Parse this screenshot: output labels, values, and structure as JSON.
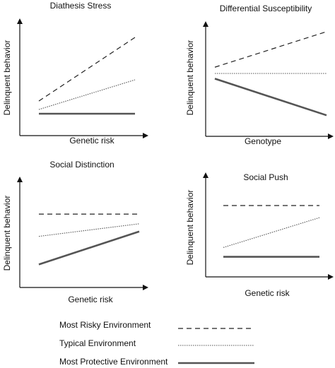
{
  "panels": [
    {
      "title": "Diathesis Stress",
      "xlabel": "Genetic risk",
      "ylabel": "Delinquent behavior",
      "lines": [
        {
          "style": "risky",
          "y_start": 0.3,
          "y_end": 0.9
        },
        {
          "style": "typical",
          "y_start": 0.22,
          "y_end": 0.5
        },
        {
          "style": "protective",
          "y_start": 0.18,
          "y_end": 0.18
        }
      ]
    },
    {
      "title": "Differential Susceptibility",
      "xlabel": "Genotype",
      "ylabel": "Delinquent behavior",
      "lines": [
        {
          "style": "risky",
          "y_start": 0.56,
          "y_end": 0.9
        },
        {
          "style": "typical",
          "y_start": 0.5,
          "y_end": 0.5
        },
        {
          "style": "protective",
          "y_start": 0.45,
          "y_end": 0.1
        }
      ]
    },
    {
      "title": "Social Distinction",
      "xlabel": "Genetic risk",
      "ylabel": "Delinquent behavior",
      "lines": [
        {
          "style": "risky",
          "y_start": 0.7,
          "y_end": 0.7
        },
        {
          "style": "typical",
          "y_start": 0.47,
          "y_end": 0.6
        },
        {
          "style": "protective",
          "y_start": 0.18,
          "y_end": 0.52
        }
      ]
    },
    {
      "title": "Social Push",
      "xlabel": "Genetic risk",
      "ylabel": "Delinquent behavior",
      "lines": [
        {
          "style": "risky",
          "y_start": 0.75,
          "y_end": 0.75
        },
        {
          "style": "typical",
          "y_start": 0.3,
          "y_end": 0.62
        },
        {
          "style": "protective",
          "y_start": 0.2,
          "y_end": 0.2
        }
      ]
    }
  ],
  "legend": [
    {
      "style": "risky",
      "label": "Most Risky Environment"
    },
    {
      "style": "typical",
      "label": "Typical Environment"
    },
    {
      "style": "protective",
      "label": "Most Protective Environment"
    }
  ],
  "line_styles": {
    "risky": {
      "color": "#222222",
      "dash": "7,5",
      "width": 1.2
    },
    "typical": {
      "color": "#555555",
      "dash": "1.5,1.5",
      "width": 1.1
    },
    "protective": {
      "color": "#555555",
      "dash": "",
      "width": 2.6
    }
  }
}
